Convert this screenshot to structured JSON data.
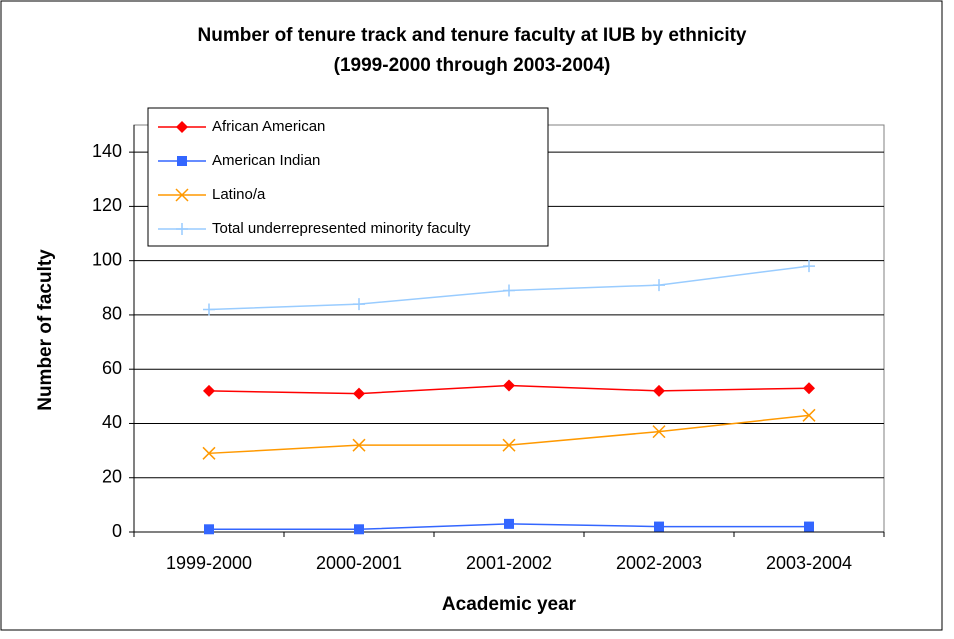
{
  "chart_data": {
    "type": "line",
    "title": "Number of tenure track and tenure faculty at IUB by ethnicity",
    "subtitle": "(1999-2000 through 2003-2004)",
    "x_label": "Academic year",
    "y_label": "Number of faculty",
    "categories": [
      "1999-2000",
      "2000-2001",
      "2001-2002",
      "2002-2003",
      "2003-2004"
    ],
    "series": [
      {
        "name": "African American",
        "color": "#ff0000",
        "marker": "diamond",
        "values": [
          52,
          51,
          54,
          52,
          53
        ]
      },
      {
        "name": "American Indian",
        "color": "#3366ff",
        "marker": "square",
        "values": [
          1,
          1,
          3,
          2,
          2
        ]
      },
      {
        "name": "Latino/a",
        "color": "#ff9900",
        "marker": "x",
        "values": [
          29,
          32,
          32,
          37,
          43
        ]
      },
      {
        "name": "Total underrepresented minority faculty",
        "color": "#99ccff",
        "marker": "plus",
        "values": [
          82,
          84,
          89,
          91,
          98
        ]
      }
    ],
    "ylim": [
      0,
      150
    ],
    "yticks": [
      0,
      20,
      40,
      60,
      80,
      100,
      120,
      140
    ],
    "grid": true,
    "legend": "upper left"
  }
}
